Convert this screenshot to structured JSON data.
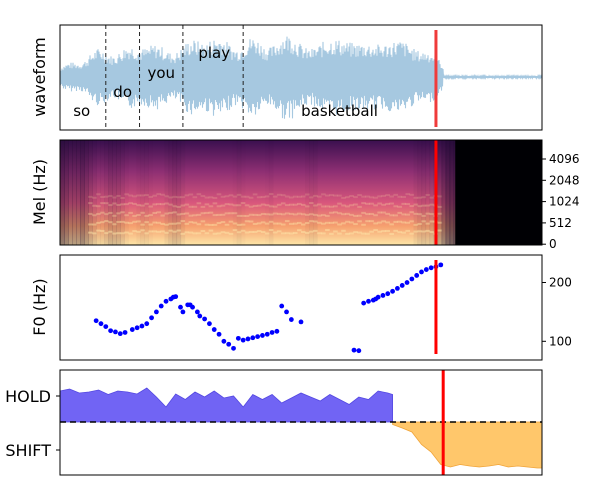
{
  "chart_data": [
    {
      "type": "area",
      "panel": "waveform",
      "ylabel": "waveform",
      "words": [
        {
          "label": "so",
          "t": 0.045
        },
        {
          "label": "do",
          "t": 0.13
        },
        {
          "label": "you",
          "t": 0.21
        },
        {
          "label": "play",
          "t": 0.32
        },
        {
          "label": "basketball",
          "t": 0.58
        }
      ],
      "word_boundaries": [
        0.095,
        0.165,
        0.255,
        0.38
      ],
      "speech_end": 0.795,
      "cursor": 0.78,
      "colors": {
        "wave": "#a6c8e0",
        "cursor": "#ef3b3b"
      }
    },
    {
      "type": "heatmap",
      "panel": "mel",
      "ylabel": "Mel (Hz)",
      "yticks": [
        "4096",
        "2048",
        "1024",
        "512",
        "0"
      ],
      "speech_end": 0.82,
      "cursor": 0.78,
      "colors": {
        "cursor": "#ff0000"
      }
    },
    {
      "type": "scatter",
      "panel": "f0",
      "ylabel": "F0 (Hz)",
      "ylim": [
        75,
        240
      ],
      "yticks": [
        100,
        200
      ],
      "cursor": 0.78,
      "x": [
        0.075,
        0.085,
        0.095,
        0.105,
        0.115,
        0.125,
        0.135,
        0.15,
        0.16,
        0.17,
        0.18,
        0.19,
        0.2,
        0.21,
        0.22,
        0.23,
        0.235,
        0.24,
        0.25,
        0.255,
        0.265,
        0.27,
        0.275,
        0.285,
        0.29,
        0.3,
        0.31,
        0.32,
        0.33,
        0.34,
        0.35,
        0.36,
        0.37,
        0.38,
        0.39,
        0.4,
        0.41,
        0.42,
        0.43,
        0.44,
        0.45,
        0.46,
        0.47,
        0.48,
        0.5,
        0.61,
        0.62,
        0.63,
        0.64,
        0.65,
        0.655,
        0.66,
        0.67,
        0.68,
        0.69,
        0.7,
        0.71,
        0.72,
        0.73,
        0.74,
        0.75,
        0.76,
        0.77,
        0.78,
        0.79
      ],
      "y": [
        135,
        130,
        125,
        118,
        116,
        113,
        115,
        120,
        123,
        126,
        130,
        140,
        150,
        160,
        168,
        172,
        175,
        176,
        158,
        150,
        162,
        162,
        158,
        150,
        143,
        138,
        130,
        120,
        112,
        100,
        95,
        88,
        105,
        102,
        104,
        106,
        108,
        110,
        112,
        115,
        117,
        160,
        150,
        137,
        133,
        85,
        84,
        165,
        168,
        170,
        172,
        175,
        178,
        181,
        185,
        190,
        195,
        200,
        206,
        212,
        218,
        222,
        225,
        227,
        230
      ],
      "colors": {
        "points": "#0000ff",
        "cursor": "#ff0000"
      }
    },
    {
      "type": "area",
      "panel": "turn",
      "yticks": [
        "HOLD",
        "SHIFT"
      ],
      "cursor": 0.795,
      "hold": {
        "x": [
          0.0,
          0.02,
          0.04,
          0.06,
          0.08,
          0.1,
          0.12,
          0.14,
          0.16,
          0.18,
          0.2,
          0.22,
          0.24,
          0.26,
          0.28,
          0.3,
          0.32,
          0.34,
          0.36,
          0.38,
          0.4,
          0.42,
          0.44,
          0.46,
          0.48,
          0.5,
          0.52,
          0.54,
          0.56,
          0.58,
          0.6,
          0.62,
          0.64,
          0.66,
          0.68,
          0.69
        ],
        "y": [
          0.62,
          0.66,
          0.58,
          0.6,
          0.64,
          0.55,
          0.62,
          0.6,
          0.56,
          0.68,
          0.5,
          0.3,
          0.56,
          0.45,
          0.6,
          0.5,
          0.62,
          0.48,
          0.52,
          0.3,
          0.55,
          0.45,
          0.55,
          0.38,
          0.48,
          0.58,
          0.5,
          0.42,
          0.55,
          0.45,
          0.35,
          0.5,
          0.45,
          0.62,
          0.58,
          0.55
        ]
      },
      "shift": {
        "x": [
          0.69,
          0.71,
          0.73,
          0.75,
          0.77,
          0.79,
          0.81,
          0.83,
          0.85,
          0.87,
          0.89,
          0.91,
          0.93,
          0.95,
          0.97,
          0.99,
          1.0
        ],
        "y": [
          -0.05,
          -0.12,
          -0.2,
          -0.45,
          -0.6,
          -0.85,
          -0.9,
          -0.85,
          -0.88,
          -0.9,
          -0.88,
          -0.85,
          -0.9,
          -0.88,
          -0.9,
          -0.92,
          -0.92
        ]
      },
      "colors": {
        "hold": "#6a5cf4",
        "shift": "#ffc76b",
        "cursor": "#ff0000"
      }
    }
  ]
}
